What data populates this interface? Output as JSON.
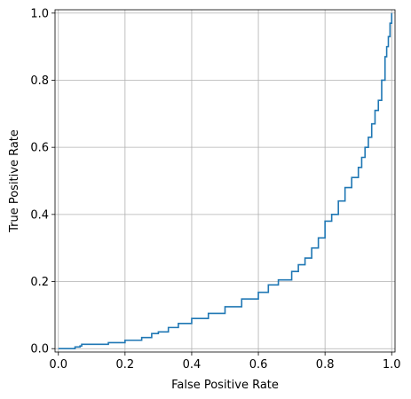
{
  "chart_data": {
    "type": "line",
    "title": "",
    "xlabel": "False Positive Rate",
    "ylabel": "True Positive Rate",
    "xlim": [
      -0.01,
      1.01
    ],
    "ylim": [
      -0.01,
      1.01
    ],
    "grid": true,
    "x_ticks": [
      0.0,
      0.2,
      0.4,
      0.6,
      0.8,
      1.0
    ],
    "y_ticks": [
      0.0,
      0.2,
      0.4,
      0.6,
      0.8,
      1.0
    ],
    "x_tick_labels": [
      "0.0",
      "0.2",
      "0.4",
      "0.6",
      "0.8",
      "1.0"
    ],
    "y_tick_labels": [
      "0.0",
      "0.2",
      "0.4",
      "0.6",
      "0.8",
      "1.0"
    ],
    "line_color": "#1f77b4",
    "series": [
      {
        "x": [
          0.0,
          0.04,
          0.05,
          0.065,
          0.07,
          0.1,
          0.15,
          0.2,
          0.25,
          0.28,
          0.3,
          0.33,
          0.36,
          0.4,
          0.45,
          0.5,
          0.55,
          0.6,
          0.63,
          0.66,
          0.7,
          0.72,
          0.74,
          0.76,
          0.78,
          0.8,
          0.82,
          0.84,
          0.86,
          0.88,
          0.9,
          0.91,
          0.92,
          0.93,
          0.94,
          0.95,
          0.96,
          0.97,
          0.98,
          0.985,
          0.99,
          0.995,
          1.0
        ],
        "y": [
          0.0,
          0.0,
          0.005,
          0.008,
          0.013,
          0.013,
          0.018,
          0.025,
          0.033,
          0.045,
          0.05,
          0.063,
          0.075,
          0.09,
          0.105,
          0.125,
          0.148,
          0.168,
          0.19,
          0.205,
          0.23,
          0.25,
          0.27,
          0.3,
          0.33,
          0.38,
          0.4,
          0.44,
          0.48,
          0.51,
          0.54,
          0.57,
          0.6,
          0.63,
          0.67,
          0.71,
          0.74,
          0.8,
          0.87,
          0.9,
          0.93,
          0.97,
          1.0
        ]
      }
    ]
  }
}
